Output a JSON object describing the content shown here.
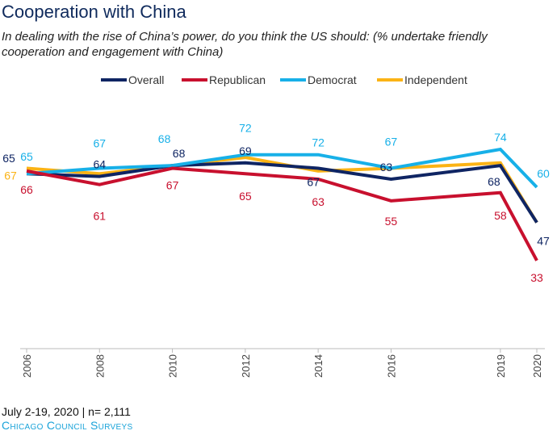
{
  "header": {
    "title": "Cooperation with China",
    "subtitle": "In dealing with the rise of China’s power, do you think the US should: (% undertake friendly cooperation and engagement with China)"
  },
  "footer": {
    "date_n": "July 2-19, 2020 | n= 2,111",
    "source": "Chicago Council Surveys"
  },
  "chart_data": {
    "type": "line",
    "title": "Cooperation with China",
    "x": [
      2006,
      2008,
      2010,
      2012,
      2014,
      2016,
      2019,
      2020
    ],
    "xlabel": "",
    "ylabel": "",
    "ylim": [
      0,
      100
    ],
    "grid": false,
    "legend": "top",
    "series": [
      {
        "name": "Overall",
        "color": "#0f2563",
        "values": [
          65,
          64,
          68,
          69,
          67,
          63,
          68,
          47
        ],
        "labeled": true
      },
      {
        "name": "Republican",
        "color": "#c8102e",
        "values": [
          66,
          61,
          67,
          65,
          63,
          55,
          58,
          33
        ],
        "labeled": true
      },
      {
        "name": "Democrat",
        "color": "#17b0e8",
        "values": [
          65,
          67,
          68,
          72,
          72,
          67,
          74,
          60
        ],
        "labeled": true
      },
      {
        "name": "Independent",
        "color": "#fbb315",
        "values": [
          67,
          65,
          68,
          71,
          66,
          67,
          69,
          47
        ],
        "labeled": [
          true,
          false,
          false,
          false,
          false,
          false,
          false,
          false
        ]
      }
    ]
  }
}
